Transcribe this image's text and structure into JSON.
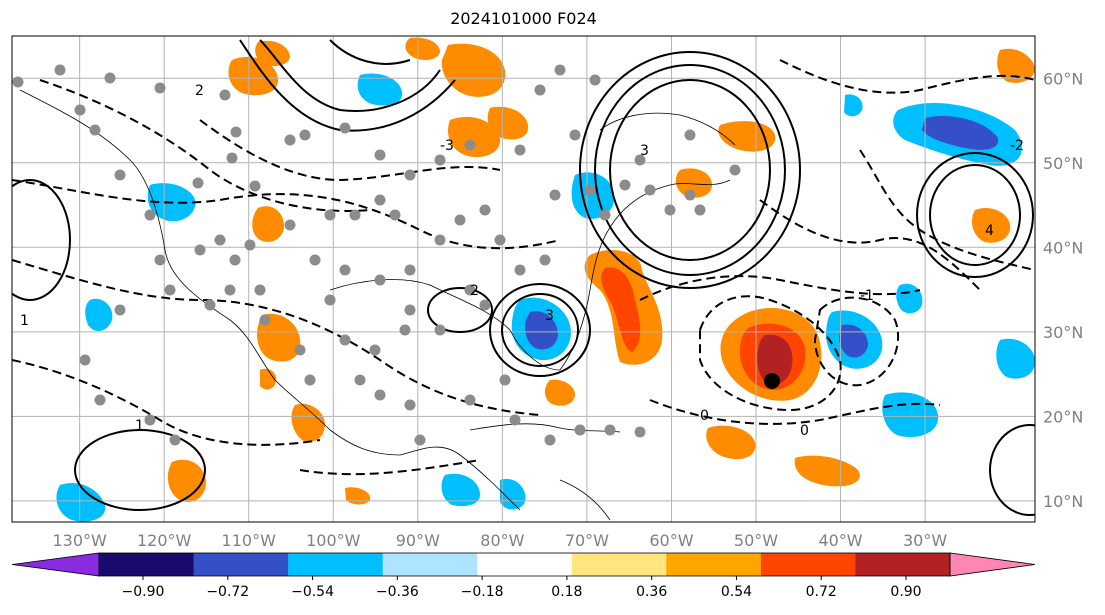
{
  "title": "2024101000 F024",
  "map": {
    "lon_range": [
      -138,
      -17
    ],
    "lat_range": [
      7.5,
      65
    ],
    "lon_labels": [
      "130°W",
      "120°W",
      "110°W",
      "100°W",
      "90°W",
      "80°W",
      "70°W",
      "60°W",
      "50°W",
      "40°W",
      "30°W"
    ],
    "lon_values": [
      -130,
      -120,
      -110,
      -100,
      -90,
      -80,
      -70,
      -60,
      -50,
      -40,
      -30
    ],
    "lat_labels": [
      "60°N",
      "50°N",
      "40°N",
      "30°N",
      "20°N",
      "10°N"
    ],
    "lat_values": [
      60,
      50,
      40,
      30,
      20,
      10
    ],
    "contour_labels": [
      "0",
      "1",
      "2",
      "3",
      "4",
      "0",
      "1",
      "2",
      "3",
      "-1",
      "-2",
      "-3"
    ],
    "colors": {
      "grid": "#b3b3b3",
      "tick_label": "#808080",
      "station": "#8c8c8c"
    }
  },
  "colorbar": {
    "tick_labels": [
      "−0.90",
      "−0.72",
      "−0.54",
      "−0.36",
      "−0.18",
      "0.18",
      "0.36",
      "0.54",
      "0.72",
      "0.90"
    ],
    "segment_colors": [
      "#1a0a6e",
      "#3450c8",
      "#00bfff",
      "#aee4ff",
      "#ffffff",
      "#ffe680",
      "#ffa500",
      "#ff4500",
      "#b22222"
    ],
    "under_color": "#8a2be2",
    "over_color": "#ff85b2"
  }
}
